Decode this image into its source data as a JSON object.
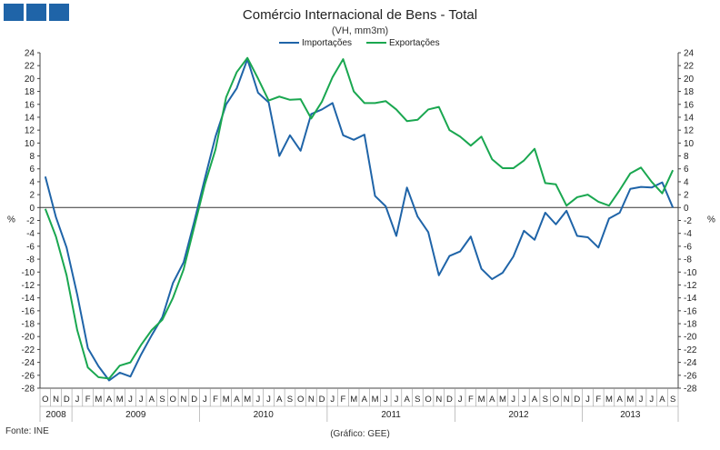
{
  "header": {
    "title": "Comércio Internacional de Bens - Total",
    "subtitle": "(VH, mm3m)"
  },
  "footer": {
    "source": "Fonte: INE",
    "credit": "(Gráfico: GEE)"
  },
  "colors": {
    "importacoes": "#1f64a8",
    "exportacoes": "#1aa750",
    "logo": "#1f64a8"
  },
  "chart_data": {
    "type": "line",
    "title": "Comércio Internacional de Bens - Total",
    "subtitle": "(VH, mm3m)",
    "ylabel_left": "%",
    "ylabel_right": "%",
    "ylim": [
      -28,
      24
    ],
    "yticks": [
      24,
      22,
      20,
      18,
      16,
      14,
      12,
      10,
      8,
      6,
      4,
      2,
      0,
      -2,
      -4,
      -6,
      -8,
      -10,
      -12,
      -14,
      -16,
      -18,
      -20,
      -22,
      -24,
      -26,
      -28
    ],
    "legend_position": "top-center",
    "grid": false,
    "month_labels": [
      "O",
      "N",
      "D",
      "J",
      "F",
      "M",
      "A",
      "M",
      "J",
      "J",
      "A",
      "S",
      "O",
      "N",
      "D",
      "J",
      "F",
      "M",
      "A",
      "M",
      "J",
      "J",
      "A",
      "S",
      "O",
      "N",
      "D",
      "J",
      "F",
      "M",
      "A",
      "M",
      "J",
      "J",
      "A",
      "S",
      "O",
      "N",
      "D",
      "J",
      "F",
      "M",
      "A",
      "M",
      "J",
      "J",
      "A",
      "S",
      "O",
      "N",
      "D",
      "J",
      "F",
      "M",
      "A",
      "M",
      "J",
      "J",
      "A",
      "S"
    ],
    "years": [
      {
        "label": "2008",
        "start": 0,
        "count": 3
      },
      {
        "label": "2009",
        "start": 3,
        "count": 12
      },
      {
        "label": "2010",
        "start": 15,
        "count": 12
      },
      {
        "label": "2011",
        "start": 27,
        "count": 12
      },
      {
        "label": "2012",
        "start": 39,
        "count": 12
      },
      {
        "label": "2013",
        "start": 51,
        "count": 9
      }
    ],
    "x": [
      "2008-10",
      "2008-11",
      "2008-12",
      "2009-01",
      "2009-02",
      "2009-03",
      "2009-04",
      "2009-05",
      "2009-06",
      "2009-07",
      "2009-08",
      "2009-09",
      "2009-10",
      "2009-11",
      "2009-12",
      "2010-01",
      "2010-02",
      "2010-03",
      "2010-04",
      "2010-05",
      "2010-06",
      "2010-07",
      "2010-08",
      "2010-09",
      "2010-10",
      "2010-11",
      "2010-12",
      "2011-01",
      "2011-02",
      "2011-03",
      "2011-04",
      "2011-05",
      "2011-06",
      "2011-07",
      "2011-08",
      "2011-09",
      "2011-10",
      "2011-11",
      "2011-12",
      "2012-01",
      "2012-02",
      "2012-03",
      "2012-04",
      "2012-05",
      "2012-06",
      "2012-07",
      "2012-08",
      "2012-09",
      "2012-10",
      "2012-11",
      "2012-12",
      "2013-01",
      "2013-02",
      "2013-03",
      "2013-04",
      "2013-05",
      "2013-06",
      "2013-07",
      "2013-08",
      "2013-09"
    ],
    "series": [
      {
        "name": "Importações",
        "color": "#1f64a8",
        "values": [
          4.8,
          -1.5,
          -6.2,
          -13.5,
          -21.8,
          -24.6,
          -26.8,
          -25.6,
          -26.2,
          -22.8,
          -19.8,
          -17.0,
          -11.7,
          -8.5,
          -2.2,
          4.5,
          11.0,
          16.0,
          18.5,
          23.0,
          17.8,
          16.3,
          8.0,
          11.2,
          8.8,
          14.5,
          15.2,
          16.2,
          11.2,
          10.5,
          11.3,
          1.8,
          0.2,
          -4.4,
          3.1,
          -1.4,
          -3.8,
          -10.5,
          -7.5,
          -6.8,
          -4.5,
          -9.5,
          -11.1,
          -10.1,
          -7.6,
          -3.6,
          -5.0,
          -0.8,
          -2.6,
          -0.5,
          -4.4,
          -4.6,
          -6.2,
          -1.7,
          -0.8,
          2.9,
          3.2,
          3.1,
          3.9,
          0
        ]
      },
      {
        "name": "Exportações",
        "color": "#1aa750",
        "values": [
          -0.2,
          -4.5,
          -10.5,
          -19.0,
          -24.8,
          -26.3,
          -26.5,
          -24.5,
          -24.0,
          -21.3,
          -19.0,
          -17.4,
          -14.0,
          -9.6,
          -3.0,
          3.6,
          9.0,
          17.1,
          21.0,
          23.2,
          20.0,
          16.6,
          17.2,
          16.7,
          16.8,
          13.8,
          16.4,
          20.2,
          23.0,
          18.0,
          16.2,
          16.2,
          16.5,
          15.2,
          13.4,
          13.6,
          15.2,
          15.6,
          12.0,
          11.0,
          9.6,
          11.0,
          7.5,
          6.1,
          6.1,
          7.3,
          9.1,
          3.8,
          3.6,
          0.3,
          1.6,
          2.0,
          0.9,
          0.3,
          2.7,
          5.3,
          6.2,
          4.0,
          2.2,
          5.8
        ]
      }
    ]
  }
}
